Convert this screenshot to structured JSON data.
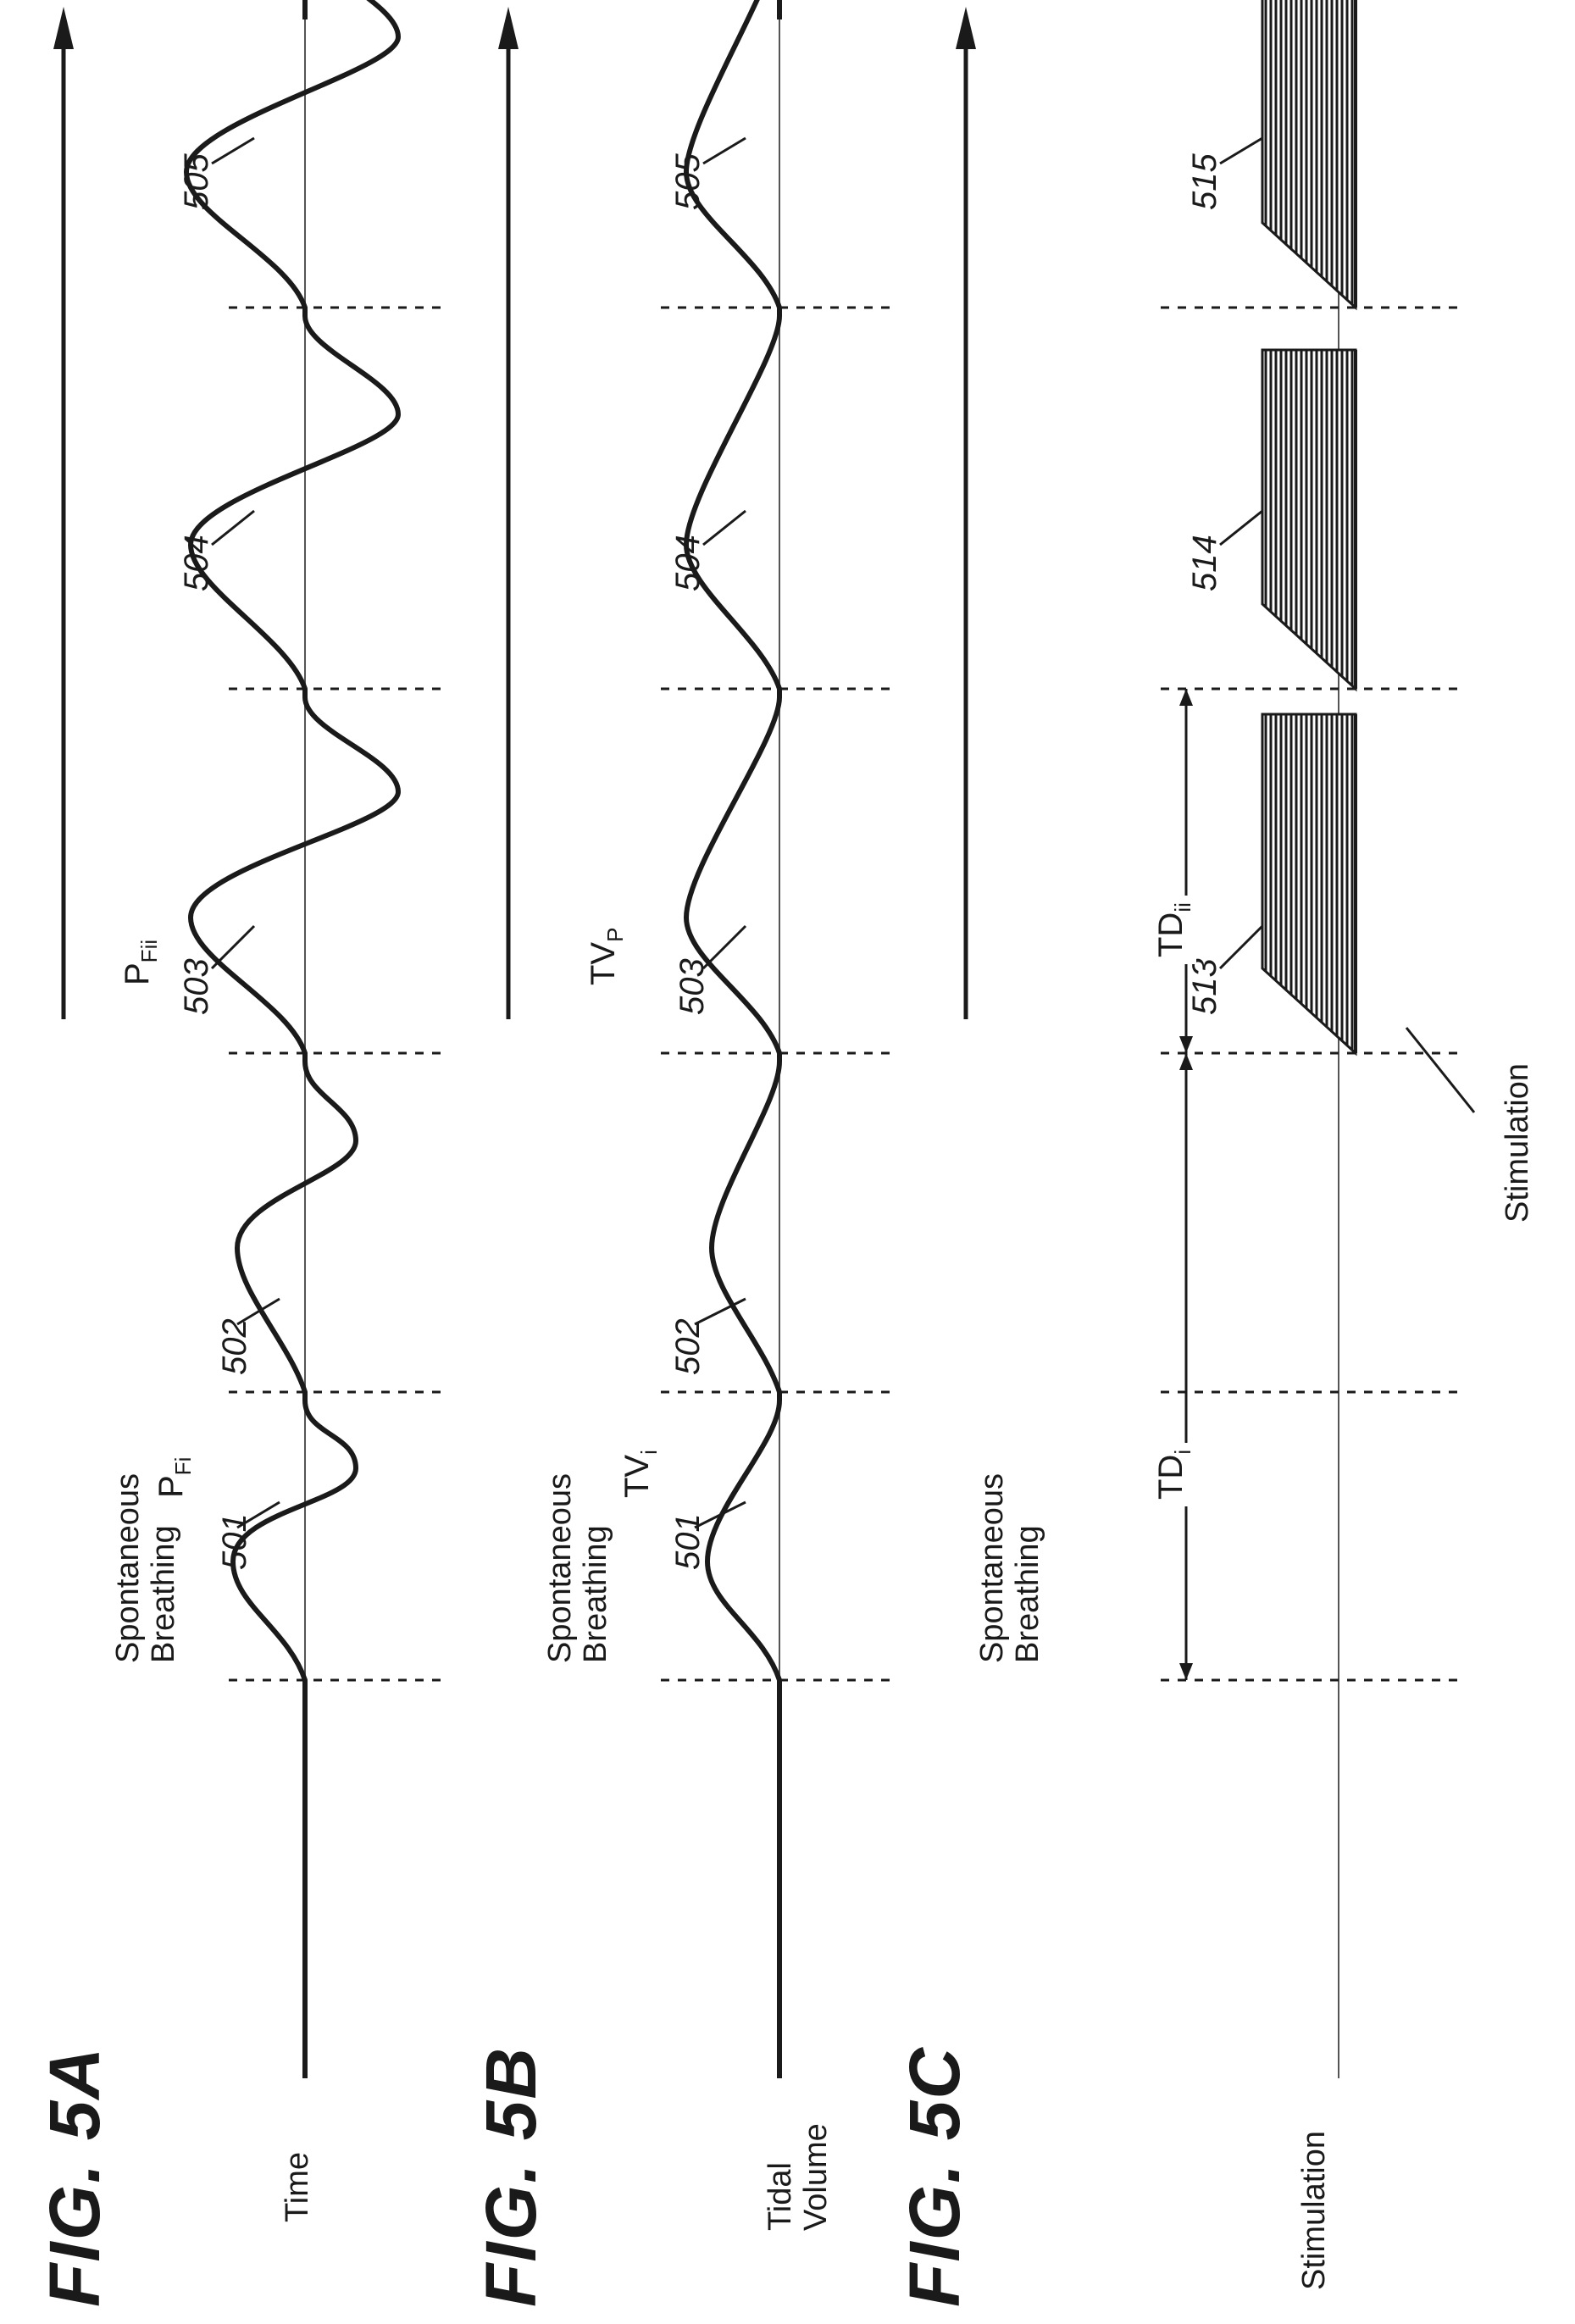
{
  "panels": [
    {
      "title": "FIG. 5A",
      "axis_label": "Time",
      "note_lines": [
        "Spontaneous",
        "Breathing"
      ],
      "refs": [
        "501",
        "502",
        "503",
        "504",
        "505"
      ]
    },
    {
      "title": "FIG. 5B",
      "axis_label_lines": [
        "Tidal",
        "Volume"
      ],
      "note_lines": [
        "Spontaneous",
        "Breathing"
      ],
      "refs": [
        "501",
        "502",
        "503",
        "504",
        "505"
      ]
    },
    {
      "title": "FIG. 5C",
      "axis_label": "Stimulation",
      "note_lines": [
        "Spontaneous",
        "Breathing"
      ],
      "refs": [
        "513",
        "514",
        "515"
      ],
      "burst_callout": "Stimulation"
    }
  ],
  "symbols": {
    "pfi": {
      "main": "P",
      "sub": "Fi"
    },
    "pfii": {
      "main": "P",
      "sub": "Fii"
    },
    "tvi": {
      "main": "TV",
      "sub": "i"
    },
    "tvp": {
      "main": "TV",
      "sub": "P"
    },
    "tdi": {
      "main": "TD",
      "sub": "i"
    },
    "tdii": {
      "main": "TD",
      "sub": "ii"
    }
  },
  "colors": {
    "ink": "#1a1a1a",
    "axis": "#555555"
  }
}
